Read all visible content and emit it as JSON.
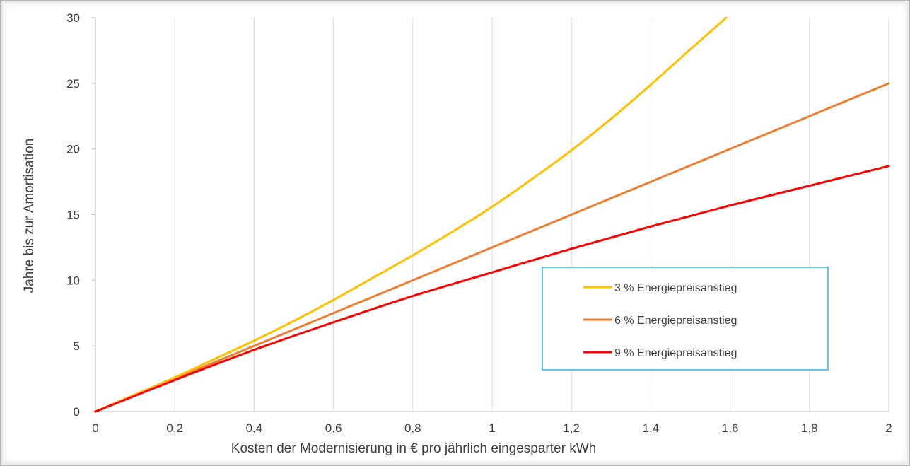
{
  "chart_data": {
    "type": "line",
    "title": "",
    "xlabel": "Kosten der Modernisierung in € pro jährlich eingesparter kWh",
    "ylabel": "Jahre bis zur Amortisation",
    "xlim": [
      0,
      2
    ],
    "ylim": [
      0,
      30
    ],
    "xticks": [
      "0",
      "0,2",
      "0,4",
      "0,6",
      "0,8",
      "1",
      "1,2",
      "1,4",
      "1,6",
      "1,8",
      "2"
    ],
    "yticks": [
      "0",
      "5",
      "10",
      "15",
      "20",
      "25",
      "30"
    ],
    "grid": "vertical",
    "legend_position": "center-right",
    "series": [
      {
        "name": "3 % Energiepreisanstieg",
        "color": "#ffc000",
        "x": [
          0,
          0.1,
          0.2,
          0.3,
          0.4,
          0.5,
          0.6,
          0.7,
          0.8,
          0.9,
          1.0,
          1.1,
          1.2,
          1.3,
          1.4,
          1.5,
          1.59
        ],
        "y": [
          0,
          1.3,
          2.6,
          4.0,
          5.4,
          6.9,
          8.5,
          10.2,
          11.9,
          13.7,
          15.6,
          17.7,
          19.9,
          22.3,
          24.9,
          27.6,
          30
        ]
      },
      {
        "name": "6 % Energiepreisanstieg",
        "color": "#ed7d31",
        "x": [
          0,
          0.2,
          0.4,
          0.6,
          0.8,
          1.0,
          1.2,
          1.4,
          1.6,
          1.8,
          2.0
        ],
        "y": [
          0,
          2.5,
          5.0,
          7.5,
          10.0,
          12.5,
          15.0,
          17.5,
          20.0,
          22.5,
          25.0
        ]
      },
      {
        "name": "9 % Energiepreisanstieg",
        "color": "#ff0000",
        "x": [
          0,
          0.2,
          0.4,
          0.6,
          0.8,
          1.0,
          1.2,
          1.4,
          1.6,
          1.8,
          2.0
        ],
        "y": [
          0,
          2.4,
          4.7,
          6.8,
          8.8,
          10.6,
          12.4,
          14.1,
          15.7,
          17.2,
          18.7
        ]
      }
    ]
  }
}
